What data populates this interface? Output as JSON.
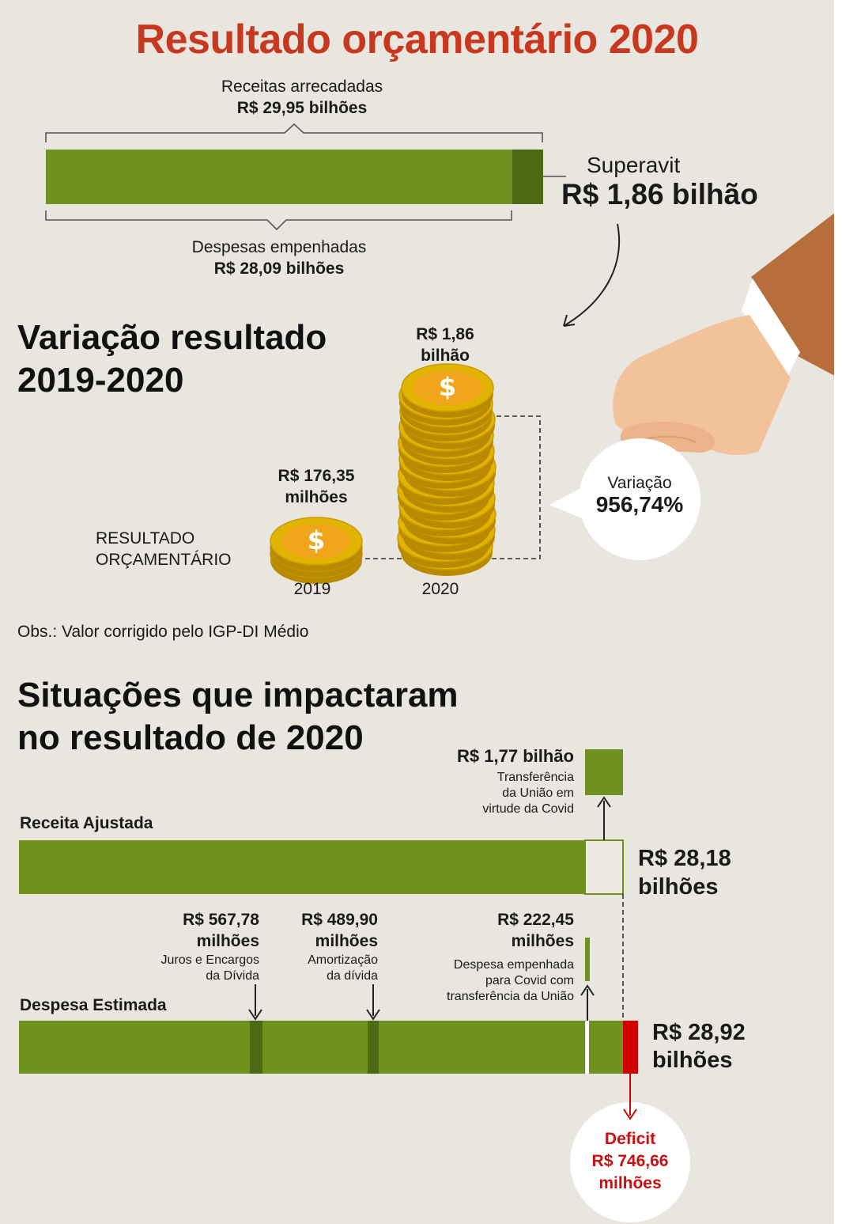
{
  "title": "Resultado orçamentário 2020",
  "top": {
    "receitas_label": "Receitas arrecadadas",
    "receitas_value": "R$ 29,95 bilhões",
    "despesas_label": "Despesas empenhadas",
    "despesas_value": "R$ 28,09 bilhões",
    "superavit_label": "Superavit",
    "superavit_value": "R$ 1,86 bilhão"
  },
  "variacao": {
    "heading_line1": "Variação resultado",
    "heading_line2": "2019-2020",
    "row_label_line1": "RESULTADO",
    "row_label_line2": "ORÇAMENTÁRIO",
    "value_2019_line1": "R$ 176,35",
    "value_2019_line2": "milhões",
    "value_2020_line1": "R$ 1,86",
    "value_2020_line2": "bilhão",
    "year_2019": "2019",
    "year_2020": "2020",
    "bubble_label": "Variação",
    "bubble_value": "956,74%",
    "note": "Obs.: Valor corrigido pelo IGP-DI Médio"
  },
  "situacoes": {
    "heading_line1": "Situações que impactaram",
    "heading_line2": "no resultado de 2020",
    "receita_label": "Receita Ajustada",
    "receita_value_line1": "R$ 28,18",
    "receita_value_line2": "bilhões",
    "transfer_value": "R$ 1,77 bilhão",
    "transfer_desc_line1": "Transferência",
    "transfer_desc_line2": "da União em",
    "transfer_desc_line3": "virtude da Covid",
    "despesa_label": "Despesa Estimada",
    "despesa_value_line1": "R$ 28,92",
    "despesa_value_line2": "bilhões",
    "juros_value_line1": "R$ 567,78",
    "juros_value_line2": "milhões",
    "juros_desc_line1": "Juros e Encargos",
    "juros_desc_line2": "da Dívida",
    "amort_value_line1": "R$ 489,90",
    "amort_value_line2": "milhões",
    "amort_desc_line1": "Amortização",
    "amort_desc_line2": "da dívida",
    "covid_value_line1": "R$ 222,45",
    "covid_value_line2": "milhões",
    "covid_desc_line1": "Despesa empenhada",
    "covid_desc_line2": "para Covid com",
    "covid_desc_line3": "transferência da União",
    "deficit_label": "Deficit",
    "deficit_value_line1": "R$ 746,66",
    "deficit_value_line2": "milhões"
  },
  "colors": {
    "title": "#c8381f",
    "green": "#6e921e",
    "dark_green": "#4b6a12",
    "deficit_red": "#d00000",
    "background": "#e9e5df",
    "coin": "#e0b400"
  },
  "chart_data": [
    {
      "type": "bar",
      "orientation": "horizontal",
      "categories": [
        "Receitas arrecadadas",
        "Despesas empenhadas",
        "Superavit"
      ],
      "values": [
        29.95,
        28.09,
        1.86
      ],
      "unit": "R$ bilhões"
    },
    {
      "type": "bar",
      "categories": [
        "2019",
        "2020"
      ],
      "values": [
        0.17635,
        1.86
      ],
      "unit": "R$ bilhões",
      "annotation": "Variação 956,74%"
    },
    {
      "type": "bar",
      "orientation": "horizontal",
      "categories": [
        "Receita Ajustada",
        "Despesa Estimada"
      ],
      "values": [
        28.18,
        28.92
      ],
      "unit": "R$ bilhões",
      "components": [
        {
          "name": "Transferência da União em virtude da Covid",
          "value": 1.77,
          "unit": "R$ bilhões"
        },
        {
          "name": "Juros e Encargos da Dívida",
          "value": 567.78,
          "unit": "R$ milhões"
        },
        {
          "name": "Amortização da dívida",
          "value": 489.9,
          "unit": "R$ milhões"
        },
        {
          "name": "Despesa empenhada para Covid com transferência da União",
          "value": 222.45,
          "unit": "R$ milhões"
        },
        {
          "name": "Deficit",
          "value": 746.66,
          "unit": "R$ milhões"
        }
      ]
    }
  ]
}
